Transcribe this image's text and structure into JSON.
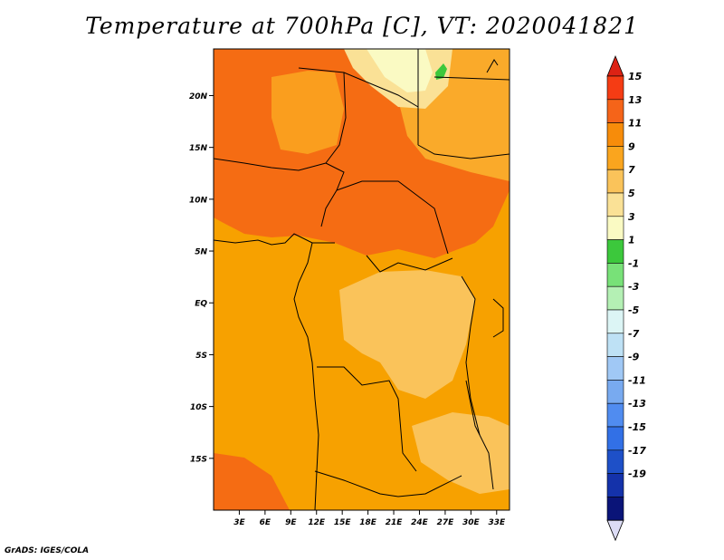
{
  "title": "Temperature at 700hPa [C], VT: 2020041821",
  "credit": "GrADS: IGES/COLA",
  "map": {
    "lat_labels": [
      "20N",
      "15N",
      "10N",
      "5N",
      "EQ",
      "5S",
      "10S",
      "15S"
    ],
    "lon_labels": [
      "3E",
      "6E",
      "9E",
      "12E",
      "15E",
      "18E",
      "21E",
      "24E",
      "27E",
      "30E",
      "33E"
    ],
    "extent": {
      "lon": [
        0,
        34.5
      ],
      "lat": [
        -20,
        24.5
      ]
    },
    "background_color": "#f7a100"
  },
  "colorbar": {
    "labels": [
      "15",
      "13",
      "11",
      "9",
      "7",
      "5",
      "3",
      "1",
      "-1",
      "-3",
      "-5",
      "-7",
      "-9",
      "-11",
      "-13",
      "-15",
      "-17",
      "-19"
    ],
    "top_color": "#dc2214",
    "bottom_color": "#dcdcf5",
    "colors": [
      "#f53c14",
      "#f56419",
      "#f78c0a",
      "#faa51e",
      "#fac35a",
      "#fae196",
      "#fafac3",
      "#3cc83c",
      "#78e178",
      "#b4f0b4",
      "#dcf5f5",
      "#bee1f5",
      "#a0c8f5",
      "#78aaf0",
      "#508cf0",
      "#3270e6",
      "#1e50c8",
      "#1432aa",
      "#0a1478"
    ]
  }
}
